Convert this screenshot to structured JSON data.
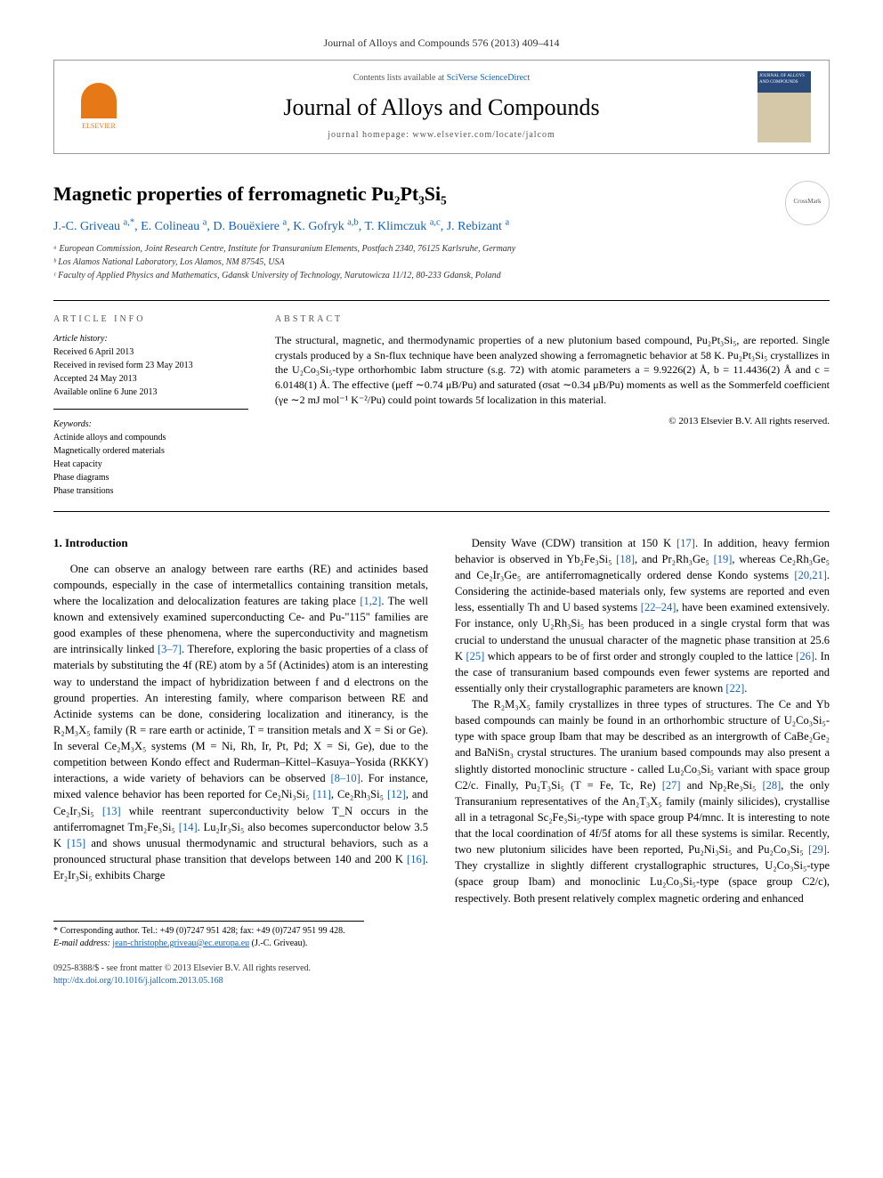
{
  "journal_ref": "Journal of Alloys and Compounds 576 (2013) 409–414",
  "header": {
    "contents_prefix": "Contents lists available at ",
    "contents_link": "SciVerse ScienceDirect",
    "journal_name": "Journal of Alloys and Compounds",
    "homepage_prefix": "journal homepage: ",
    "homepage_url": "www.elsevier.com/locate/jalcom",
    "elsevier_label": "ELSEVIER",
    "cover_label": "JOURNAL OF ALLOYS AND COMPOUNDS"
  },
  "crossmark_label": "CrossMark",
  "title": "Magnetic properties of ferromagnetic Pu₂Pt₃Si₅",
  "authors_html": "J.-C. Griveau <sup>a,*</sup>, E. Colineau <sup>a</sup>, D. Bouëxiere <sup>a</sup>, K. Gofryk <sup>a,b</sup>, T. Klimczuk <sup>a,c</sup>, J. Rebizant <sup>a</sup>",
  "affiliations": [
    "ᵃ European Commission, Joint Research Centre, Institute for Transuranium Elements, Postfach 2340, 76125 Karlsruhe, Germany",
    "ᵇ Los Alamos National Laboratory, Los Alamos, NM 87545, USA",
    "ᶜ Faculty of Applied Physics and Mathematics, Gdansk University of Technology, Narutowicza 11/12, 80-233 Gdansk, Poland"
  ],
  "info_label": "ARTICLE INFO",
  "abstract_label": "ABSTRACT",
  "history": {
    "title": "Article history:",
    "items": [
      "Received 6 April 2013",
      "Received in revised form 23 May 2013",
      "Accepted 24 May 2013",
      "Available online 6 June 2013"
    ]
  },
  "keywords": {
    "title": "Keywords:",
    "items": [
      "Actinide alloys and compounds",
      "Magnetically ordered materials",
      "Heat capacity",
      "Phase diagrams",
      "Phase transitions"
    ]
  },
  "abstract_text": "The structural, magnetic, and thermodynamic properties of a new plutonium based compound, Pu₂Pt₃Si₅, are reported. Single crystals produced by a Sn-flux technique have been analyzed showing a ferromagnetic behavior at 58 K. Pu₂Pt₃Si₅ crystallizes in the U₂Co₃Si₅-type orthorhombic Iabm structure (s.g. 72) with atomic parameters a = 9.9226(2) Å, b = 11.4436(2) Å and c = 6.0148(1) Å. The effective (μeff ∼0.74 μB/Pu) and saturated (σsat ∼0.34 μB/Pu) moments as well as the Sommerfeld coefficient (γe ∼2 mJ mol⁻¹ K⁻²/Pu) could point towards 5f localization in this material.",
  "copyright": "© 2013 Elsevier B.V. All rights reserved.",
  "section_heading": "1. Introduction",
  "body_p1": "One can observe an analogy between rare earths (RE) and actinides based compounds, especially in the case of intermetallics containing transition metals, where the localization and delocalization features are taking place [1,2]. The well known and extensively examined superconducting Ce- and Pu-\"115\" families are good examples of these phenomena, where the superconductivity and magnetism are intrinsically linked [3–7]. Therefore, exploring the basic properties of a class of materials by substituting the 4f (RE) atom by a 5f (Actinides) atom is an interesting way to understand the impact of hybridization between f and d electrons on the ground properties. An interesting family, where comparison between RE and Actinide systems can be done, considering localization and itinerancy, is the R₂M₃X₅ family (R = rare earth or actinide, T = transition metals and X = Si or Ge). In several Ce₂M₃X₅ systems (M = Ni, Rh, Ir, Pt, Pd; X = Si, Ge), due to the competition between Kondo effect and Ruderman–Kittel–Kasuya–Yosida (RKKY) interactions, a wide variety of behaviors can be observed [8–10]. For instance, mixed valence behavior has been reported for Ce₂Ni₃Si₅ [11], Ce₂Rh₃Si₅ [12], and Ce₂Ir₃Si₅ [13] while reentrant superconductivity below T_N occurs in the antiferromagnet Tm₂Fe₃Si₅ [14]. Lu₂Ir₃Si₅ also becomes superconductor below 3.5 K [15] and shows unusual thermodynamic and structural behaviors, such as a pronounced structural phase transition that develops between 140 and 200 K [16]. Er₂Ir₃Si₅ exhibits Charge",
  "body_p2": "Density Wave (CDW) transition at 150 K [17]. In addition, heavy fermion behavior is observed in Yb₂Fe₃Si₅ [18], and Pr₂Rh₃Ge₅ [19], whereas Ce₂Rh₃Ge₅ and Ce₂Ir₃Ge₅ are antiferromagnetically ordered dense Kondo systems [20,21]. Considering the actinide-based materials only, few systems are reported and even less, essentially Th and U based systems [22–24], have been examined extensively. For instance, only U₂Rh₃Si₅ has been produced in a single crystal form that was crucial to understand the unusual character of the magnetic phase transition at 25.6 K [25] which appears to be of first order and strongly coupled to the lattice [26]. In the case of transuranium based compounds even fewer systems are reported and essentially only their crystallographic parameters are known [22].",
  "body_p3": "The R₂M₃X₅ family crystallizes in three types of structures. The Ce and Yb based compounds can mainly be found in an orthorhombic structure of U₂Co₃Si₅-type with space group Ibam that may be described as an intergrowth of CaBe₂Ge₂ and BaNiSn₃ crystal structures. The uranium based compounds may also present a slightly distorted monoclinic structure - called Lu₂Co₃Si₅ variant with space group C2/c. Finally, Pu₂T₃Si₅ (T = Fe, Tc, Re) [27] and Np₂Re₃Si₅ [28], the only Transuranium representatives of the An₂T₃X₅ family (mainly silicides), crystallise all in a tetragonal Sc₂Fe₃Si₅-type with space group P4/mnc. It is interesting to note that the local coordination of 4f/5f atoms for all these systems is similar. Recently, two new plutonium silicides have been reported, Pu₂Ni₃Si₅ and Pu₂Co₃Si₅ [29]. They crystallize in slightly different crystallographic structures, U₂Co₃Si₅-type (space group Ibam) and monoclinic Lu₂Co₃Si₅-type (space group C2/c), respectively. Both present relatively complex magnetic ordering and enhanced",
  "footnote": {
    "corr": "* Corresponding author. Tel.: +49 (0)7247 951 428; fax: +49 (0)7247 951 99 428.",
    "email_label": "E-mail address: ",
    "email": "jean-christophe.griveau@ec.europa.eu",
    "email_suffix": " (J.-C. Griveau)."
  },
  "bottom": {
    "issn": "0925-8388/$ - see front matter © 2013 Elsevier B.V. All rights reserved.",
    "doi": "http://dx.doi.org/10.1016/j.jallcom.2013.05.168"
  },
  "colors": {
    "link": "#1461b8",
    "elsevier_orange": "#e67817"
  }
}
